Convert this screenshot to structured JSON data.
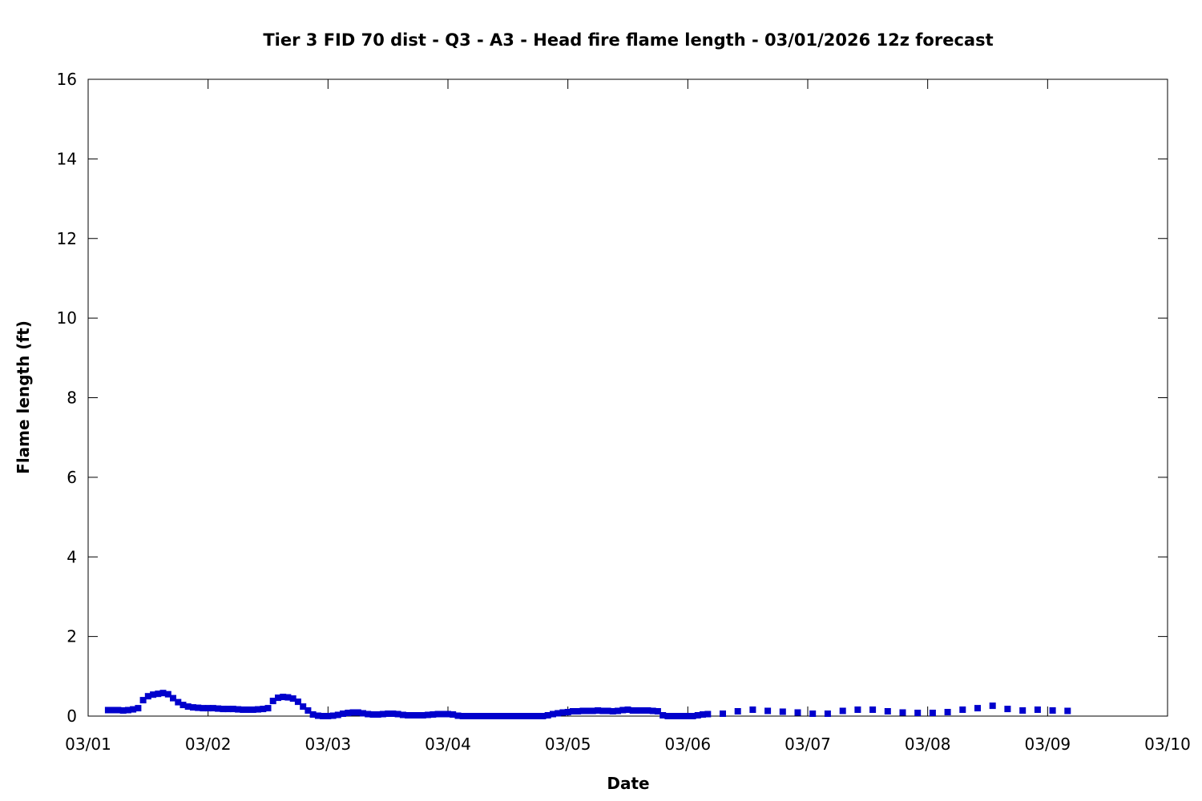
{
  "chart_data": {
    "type": "scatter",
    "title": "Tier 3 FID 70 dist - Q3 - A3 - Head fire flame length - 03/01/2026 12z forecast",
    "xlabel": "Date",
    "ylabel": "Flame length (ft)",
    "xlim": [
      "03/01 00:00",
      "03/10 00:00"
    ],
    "ylim": [
      0,
      16
    ],
    "xticks": [
      "03/01",
      "03/02",
      "03/03",
      "03/04",
      "03/05",
      "03/06",
      "03/07",
      "03/08",
      "03/09",
      "03/10"
    ],
    "yticks": [
      0,
      2,
      4,
      6,
      8,
      10,
      12,
      14,
      16
    ],
    "grid": false,
    "marker": "square",
    "color": "#0000cc",
    "series": [
      {
        "x": [
          "03/01 04:00",
          "03/01 05:00",
          "03/01 06:00",
          "03/01 07:00",
          "03/01 08:00",
          "03/01 09:00",
          "03/01 10:00",
          "03/01 11:00",
          "03/01 12:00",
          "03/01 13:00",
          "03/01 14:00",
          "03/01 15:00",
          "03/01 16:00",
          "03/01 17:00",
          "03/01 18:00",
          "03/01 19:00",
          "03/01 20:00",
          "03/01 21:00",
          "03/01 22:00",
          "03/01 23:00",
          "03/02 00:00",
          "03/02 01:00",
          "03/02 02:00",
          "03/02 03:00",
          "03/02 04:00",
          "03/02 05:00",
          "03/02 06:00",
          "03/02 07:00",
          "03/02 08:00",
          "03/02 09:00",
          "03/02 10:00",
          "03/02 11:00",
          "03/02 12:00",
          "03/02 13:00",
          "03/02 14:00",
          "03/02 15:00",
          "03/02 16:00",
          "03/02 17:00",
          "03/02 18:00",
          "03/02 19:00",
          "03/02 20:00",
          "03/02 21:00",
          "03/02 22:00",
          "03/02 23:00",
          "03/03 00:00",
          "03/03 01:00",
          "03/03 02:00",
          "03/03 03:00",
          "03/03 04:00",
          "03/03 05:00",
          "03/03 06:00",
          "03/03 07:00",
          "03/03 08:00",
          "03/03 09:00",
          "03/03 10:00",
          "03/03 11:00",
          "03/03 12:00",
          "03/03 13:00",
          "03/03 14:00",
          "03/03 15:00",
          "03/03 16:00",
          "03/03 17:00",
          "03/03 18:00",
          "03/03 19:00",
          "03/03 20:00",
          "03/03 21:00",
          "03/03 22:00",
          "03/03 23:00",
          "03/04 00:00",
          "03/04 01:00",
          "03/04 02:00",
          "03/04 03:00",
          "03/04 04:00",
          "03/04 05:00",
          "03/04 06:00",
          "03/04 07:00",
          "03/04 08:00",
          "03/04 09:00",
          "03/04 10:00",
          "03/04 11:00",
          "03/04 12:00",
          "03/04 13:00",
          "03/04 14:00",
          "03/04 15:00",
          "03/04 16:00",
          "03/04 17:00",
          "03/04 18:00",
          "03/04 19:00",
          "03/04 20:00",
          "03/04 21:00",
          "03/04 22:00",
          "03/04 23:00",
          "03/05 00:00",
          "03/05 01:00",
          "03/05 02:00",
          "03/05 03:00",
          "03/05 04:00",
          "03/05 05:00",
          "03/05 06:00",
          "03/05 07:00",
          "03/05 08:00",
          "03/05 09:00",
          "03/05 10:00",
          "03/05 11:00",
          "03/05 12:00",
          "03/05 13:00",
          "03/05 14:00",
          "03/05 15:00",
          "03/05 16:00",
          "03/05 17:00",
          "03/05 18:00",
          "03/05 19:00",
          "03/05 20:00",
          "03/05 21:00",
          "03/05 22:00",
          "03/05 23:00",
          "03/06 00:00",
          "03/06 01:00",
          "03/06 02:00",
          "03/06 03:00",
          "03/06 04:00",
          "03/06 07:00",
          "03/06 10:00",
          "03/06 13:00",
          "03/06 16:00",
          "03/06 19:00",
          "03/06 22:00",
          "03/07 01:00",
          "03/07 04:00",
          "03/07 07:00",
          "03/07 10:00",
          "03/07 13:00",
          "03/07 16:00",
          "03/07 19:00",
          "03/07 22:00",
          "03/08 01:00",
          "03/08 04:00",
          "03/08 07:00",
          "03/08 10:00",
          "03/08 13:00",
          "03/08 16:00",
          "03/08 19:00",
          "03/08 22:00",
          "03/09 01:00",
          "03/09 04:00"
        ],
        "y": [
          0.15,
          0.15,
          0.15,
          0.14,
          0.15,
          0.17,
          0.2,
          0.4,
          0.5,
          0.54,
          0.56,
          0.58,
          0.55,
          0.45,
          0.35,
          0.28,
          0.24,
          0.22,
          0.21,
          0.2,
          0.2,
          0.2,
          0.19,
          0.18,
          0.18,
          0.18,
          0.17,
          0.16,
          0.16,
          0.16,
          0.17,
          0.18,
          0.2,
          0.38,
          0.46,
          0.48,
          0.47,
          0.44,
          0.36,
          0.24,
          0.14,
          0.04,
          0.01,
          0.0,
          0.0,
          0.01,
          0.03,
          0.06,
          0.08,
          0.09,
          0.09,
          0.07,
          0.05,
          0.04,
          0.04,
          0.05,
          0.06,
          0.06,
          0.05,
          0.03,
          0.02,
          0.02,
          0.02,
          0.02,
          0.03,
          0.04,
          0.05,
          0.05,
          0.05,
          0.04,
          0.01,
          0.0,
          0.0,
          0.0,
          0.0,
          0.0,
          0.0,
          0.0,
          0.0,
          0.0,
          0.0,
          0.0,
          0.0,
          0.0,
          0.0,
          0.0,
          0.0,
          0.0,
          0.02,
          0.05,
          0.07,
          0.09,
          0.1,
          0.12,
          0.12,
          0.13,
          0.13,
          0.13,
          0.14,
          0.13,
          0.13,
          0.12,
          0.13,
          0.15,
          0.16,
          0.14,
          0.14,
          0.14,
          0.14,
          0.13,
          0.12,
          0.02,
          0.0,
          0.0,
          0.0,
          0.0,
          0.0,
          0.0,
          0.02,
          0.04,
          0.05,
          0.06,
          0.12,
          0.16,
          0.13,
          0.11,
          0.09,
          0.06,
          0.06,
          0.13,
          0.16,
          0.16,
          0.12,
          0.09,
          0.08,
          0.08,
          0.1,
          0.16,
          0.2,
          0.26,
          0.18,
          0.14,
          0.16,
          0.14,
          0.13
        ]
      }
    ]
  }
}
